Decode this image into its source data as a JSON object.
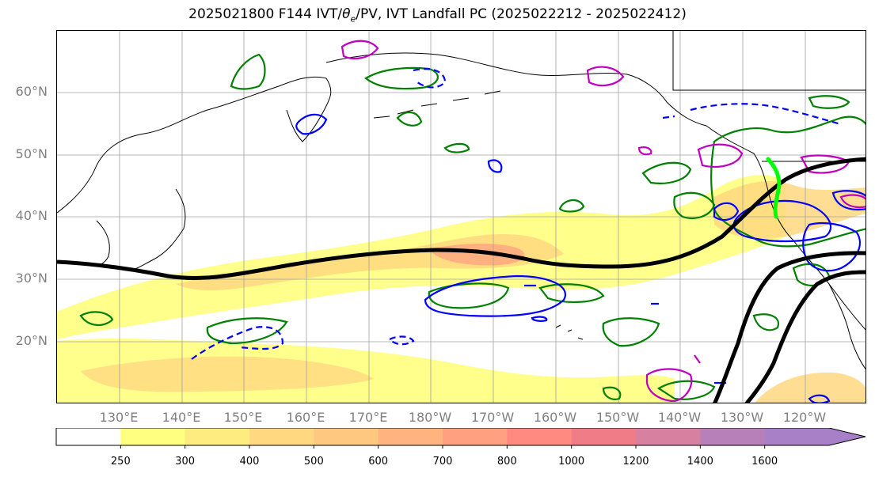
{
  "title": "2025021800 F144 IVT/θe/PV, IVT Landfall PC (2025022212 - 2025022412)",
  "title_parts": {
    "prefix": "2025021800 F144 IVT/",
    "theta": "θ",
    "theta_sub": "e",
    "suffix": "/PV, IVT Landfall PC (2025022212 - 2025022412)"
  },
  "lat_labels": [
    "60°N",
    "50°N",
    "40°N",
    "30°N",
    "20°N"
  ],
  "lon_labels": [
    "130°E",
    "140°E",
    "150°E",
    "160°E",
    "170°E",
    "180°W",
    "170°W",
    "160°W",
    "150°W",
    "140°W",
    "130°W",
    "120°W"
  ],
  "colorbar": {
    "ticks": [
      "250",
      "300",
      "400",
      "500",
      "600",
      "700",
      "800",
      "1000",
      "1200",
      "1400",
      "1600"
    ],
    "colors": [
      "#ffffff",
      "#ffff80",
      "#ffec80",
      "#ffd880",
      "#ffc880",
      "#ffb480",
      "#ffa080",
      "#ff8a80",
      "#f07c88",
      "#d880a0",
      "#b880b8",
      "#a880c8"
    ]
  },
  "colors": {
    "ivt_light": "#ffff80",
    "ivt_mid": "#ffd880",
    "ivt_high": "#ffa880",
    "theta_e_contour": "#000000",
    "pv_contour_green": "#008000",
    "pv_contour_blue": "#0000ff",
    "pv_contour_magenta": "#c000c0",
    "landfall_pc": "#00ff00"
  }
}
